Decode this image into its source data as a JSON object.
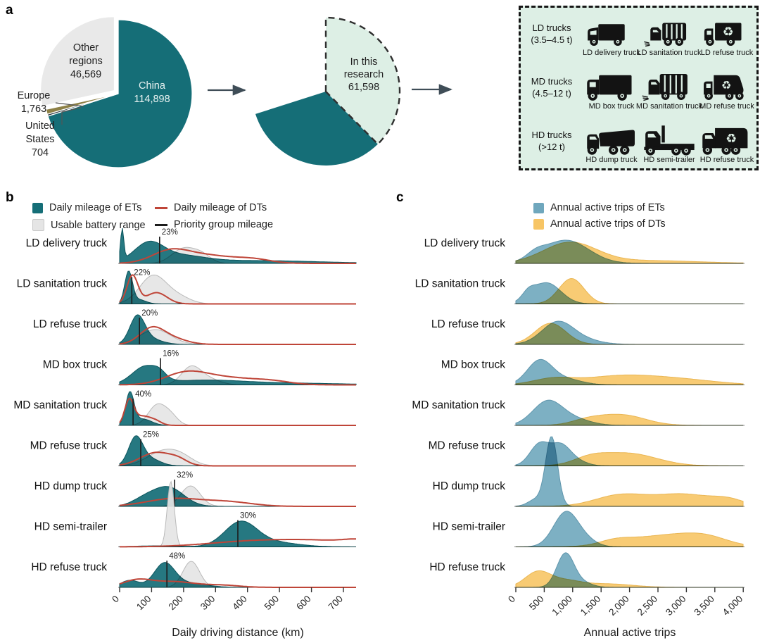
{
  "panels": {
    "a": "a",
    "b": "b",
    "c": "c"
  },
  "colors": {
    "teal": "#156e77",
    "tealDark": "#0d565e",
    "mint": "#ddefe5",
    "gray": "#e5e5e5",
    "grayStroke": "#b9b9b9",
    "red": "#bf4538",
    "blue": "#6fa7bd",
    "blueStroke": "#6096ad",
    "yellow": "#f7c565",
    "yellowStroke": "#eab653",
    "arrow": "#3f4d57",
    "priority_line": "#1c1c1c",
    "europe": "#8d8046",
    "united_states": "#253238",
    "other": "#e9e9e9"
  },
  "panel_a": {
    "truck_box": {
      "rows": [
        {
          "label": "LD trucks",
          "sublabel": "(3.5–4.5 t)",
          "trucks": [
            "LD delivery truck",
            "LD sanitation truck",
            "LD refuse truck"
          ]
        },
        {
          "label": "MD trucks",
          "sublabel": "(4.5–12 t)",
          "trucks": [
            "MD box truck",
            "MD sanitation truck",
            "MD refuse truck"
          ]
        },
        {
          "label": "HD trucks",
          "sublabel": "(>12 t)",
          "trucks": [
            "HD dump truck",
            "HD semi-trailer",
            "HD refuse truck"
          ]
        }
      ]
    }
  },
  "legend_b": {
    "items": [
      {
        "label": "Daily mileage of ETs"
      },
      {
        "label": "Usable battery range"
      },
      {
        "label": "Daily mileage of DTs"
      },
      {
        "label": "Priority group mileage"
      }
    ]
  },
  "legend_c": {
    "items": [
      {
        "label": "Annual active trips of ETs"
      },
      {
        "label": "Annual active trips of DTs"
      }
    ]
  },
  "chart_data": {
    "pie_world": {
      "type": "pie",
      "slices": [
        {
          "name": "China",
          "value": 114898,
          "color": "#156e77",
          "explode": false,
          "label_lines": [
            "China",
            "114,898"
          ]
        },
        {
          "name": "United States",
          "value": 704,
          "color": "#253238",
          "explode": false,
          "label_lines": [
            "United",
            "States",
            "704"
          ]
        },
        {
          "name": "Europe",
          "value": 1763,
          "color": "#8d8046",
          "explode": false,
          "label_lines": [
            "Europe",
            "1,763"
          ]
        },
        {
          "name": "Other regions",
          "value": 46569,
          "color": "#e9e9e9",
          "explode": true,
          "label_lines": [
            "Other",
            "regions",
            "46,569"
          ]
        }
      ]
    },
    "pie_research": {
      "type": "pie",
      "value": 61598,
      "label_lines": [
        "In this",
        "research",
        "61,598"
      ]
    },
    "daily": {
      "type": "ridgeline-density",
      "xlabel": "Daily driving distance (km)",
      "xlim": [
        0,
        740
      ],
      "xticks": [
        "0",
        "100",
        "200",
        "300",
        "400",
        "500",
        "600",
        "700"
      ],
      "rows": [
        {
          "name": "LD delivery truck",
          "pct": "23%",
          "priority_km": 125,
          "et": [
            {
              "mu": 8,
              "s": 5,
              "a": 44
            },
            {
              "mu": 90,
              "s": 45,
              "a": 25
            },
            {
              "mu": 180,
              "s": 80,
              "a": 10
            },
            {
              "mu": 420,
              "s": 200,
              "a": 4
            }
          ],
          "battery": [
            {
              "mu": 200,
              "s": 36,
              "a": 21
            },
            {
              "mu": 258,
              "s": 28,
              "a": 11
            }
          ],
          "dt": [
            {
              "mu": 155,
              "s": 55,
              "a": 14
            },
            {
              "mu": 260,
              "s": 90,
              "a": 12
            },
            {
              "mu": 420,
              "s": 55,
              "a": 5
            }
          ]
        },
        {
          "name": "LD sanitation truck",
          "pct": "22%",
          "priority_km": 38,
          "et": [
            {
              "mu": 28,
              "s": 12,
              "a": 45
            },
            {
              "mu": 60,
              "s": 22,
              "a": 6
            }
          ],
          "battery": [
            {
              "mu": 105,
              "s": 42,
              "a": 40
            },
            {
              "mu": 185,
              "s": 38,
              "a": 9
            }
          ],
          "dt": [
            {
              "mu": 40,
              "s": 17,
              "a": 40
            },
            {
              "mu": 115,
              "s": 33,
              "a": 16
            }
          ]
        },
        {
          "name": "LD refuse truck",
          "pct": "20%",
          "priority_km": 62,
          "et": [
            {
              "mu": 55,
              "s": 23,
              "a": 37
            },
            {
              "mu": 92,
              "s": 38,
              "a": 8
            }
          ],
          "battery": [
            {
              "mu": 112,
              "s": 48,
              "a": 21
            }
          ],
          "dt": [
            {
              "mu": 100,
              "s": 38,
              "a": 22
            },
            {
              "mu": 165,
              "s": 45,
              "a": 8
            }
          ]
        },
        {
          "name": "MD box truck",
          "pct": "16%",
          "priority_km": 128,
          "et": [
            {
              "mu": 82,
              "s": 42,
              "a": 25
            },
            {
              "mu": 125,
              "s": 18,
              "a": 6
            },
            {
              "mu": 260,
              "s": 120,
              "a": 6
            },
            {
              "mu": 520,
              "s": 180,
              "a": 2.5
            }
          ],
          "battery": [
            {
              "mu": 222,
              "s": 30,
              "a": 23
            },
            {
              "mu": 272,
              "s": 38,
              "a": 9
            }
          ],
          "dt": [
            {
              "mu": 205,
              "s": 65,
              "a": 15
            },
            {
              "mu": 330,
              "s": 95,
              "a": 10
            },
            {
              "mu": 480,
              "s": 60,
              "a": 4
            }
          ]
        },
        {
          "name": "MD sanitation truck",
          "pct": "40%",
          "priority_km": 42,
          "et": [
            {
              "mu": 32,
              "s": 13,
              "a": 45
            },
            {
              "mu": 72,
              "s": 28,
              "a": 9
            }
          ],
          "battery": [
            {
              "mu": 118,
              "s": 28,
              "a": 29
            },
            {
              "mu": 162,
              "s": 22,
              "a": 11
            }
          ],
          "dt": [
            {
              "mu": 30,
              "s": 14,
              "a": 34
            },
            {
              "mu": 72,
              "s": 28,
              "a": 13
            },
            {
              "mu": 115,
              "s": 18,
              "a": 4
            }
          ]
        },
        {
          "name": "MD refuse truck",
          "pct": "25%",
          "priority_km": 66,
          "et": [
            {
              "mu": 50,
              "s": 22,
              "a": 39
            },
            {
              "mu": 95,
              "s": 32,
              "a": 10
            }
          ],
          "battery": [
            {
              "mu": 138,
              "s": 50,
              "a": 21
            },
            {
              "mu": 198,
              "s": 36,
              "a": 8
            }
          ],
          "dt": [
            {
              "mu": 115,
              "s": 50,
              "a": 19
            },
            {
              "mu": 185,
              "s": 28,
              "a": 6
            }
          ]
        },
        {
          "name": "HD dump truck",
          "pct": "32%",
          "priority_km": 172,
          "et": [
            {
              "mu": 152,
              "s": 48,
              "a": 27
            },
            {
              "mu": 75,
              "s": 38,
              "a": 9
            }
          ],
          "battery": [
            {
              "mu": 222,
              "s": 30,
              "a": 29
            }
          ],
          "dt": [
            {
              "mu": 170,
              "s": 85,
              "a": 11
            },
            {
              "mu": 340,
              "s": 75,
              "a": 6
            }
          ]
        },
        {
          "name": "HD semi-trailer",
          "pct": "30%",
          "priority_km": 370,
          "et": [
            {
              "mu": 378,
              "s": 50,
              "a": 33
            },
            {
              "mu": 470,
              "s": 80,
              "a": 7
            },
            {
              "mu": 120,
              "s": 70,
              "a": 1.5
            }
          ],
          "battery": [
            {
              "mu": 160,
              "s": 11,
              "a": 93
            }
          ],
          "dt": [
            {
              "mu": 420,
              "s": 140,
              "a": 8
            },
            {
              "mu": 640,
              "s": 120,
              "a": 7
            },
            {
              "mu": 755,
              "s": 50,
              "a": 6
            }
          ]
        },
        {
          "name": "HD refuse truck",
          "pct": "48%",
          "priority_km": 148,
          "et": [
            {
              "mu": 140,
              "s": 32,
              "a": 33
            },
            {
              "mu": 32,
              "s": 28,
              "a": 10
            },
            {
              "mu": 215,
              "s": 55,
              "a": 6
            }
          ],
          "battery": [
            {
              "mu": 224,
              "s": 26,
              "a": 37
            }
          ],
          "dt": [
            {
              "mu": 55,
              "s": 45,
              "a": 10
            },
            {
              "mu": 170,
              "s": 65,
              "a": 8
            },
            {
              "mu": 320,
              "s": 55,
              "a": 3
            }
          ]
        }
      ]
    },
    "annual": {
      "type": "ridgeline-density",
      "xlabel": "Annual active trips",
      "xlim": [
        0,
        4000
      ],
      "xticks": [
        "0",
        "500",
        "1,000",
        "1,500",
        "2,000",
        "2,500",
        "3,000",
        "3,500",
        "4,000"
      ],
      "rows": [
        {
          "name": "LD delivery truck",
          "et": [
            {
              "mu": 880,
              "s": 400,
              "a": 33
            },
            {
              "mu": 350,
              "s": 160,
              "a": 8
            }
          ],
          "dt": [
            {
              "mu": 950,
              "s": 470,
              "a": 29
            },
            {
              "mu": 2300,
              "s": 900,
              "a": 4
            }
          ]
        },
        {
          "name": "LD sanitation truck",
          "et": [
            {
              "mu": 540,
              "s": 250,
              "a": 30
            },
            {
              "mu": 220,
              "s": 110,
              "a": 10
            }
          ],
          "dt": [
            {
              "mu": 980,
              "s": 220,
              "a": 36
            }
          ]
        },
        {
          "name": "LD refuse truck",
          "et": [
            {
              "mu": 740,
              "s": 280,
              "a": 32
            },
            {
              "mu": 1250,
              "s": 280,
              "a": 5
            }
          ],
          "dt": [
            {
              "mu": 610,
              "s": 270,
              "a": 30
            }
          ]
        },
        {
          "name": "MD box truck",
          "et": [
            {
              "mu": 420,
              "s": 220,
              "a": 34
            },
            {
              "mu": 880,
              "s": 280,
              "a": 8
            }
          ],
          "dt": [
            {
              "mu": 650,
              "s": 350,
              "a": 8
            },
            {
              "mu": 1800,
              "s": 650,
              "a": 12
            },
            {
              "mu": 2900,
              "s": 650,
              "a": 7
            }
          ]
        },
        {
          "name": "MD sanitation truck",
          "et": [
            {
              "mu": 560,
              "s": 260,
              "a": 34
            },
            {
              "mu": 1050,
              "s": 280,
              "a": 8
            }
          ],
          "dt": [
            {
              "mu": 1850,
              "s": 420,
              "a": 15
            },
            {
              "mu": 1250,
              "s": 280,
              "a": 6
            }
          ]
        },
        {
          "name": "MD refuse truck",
          "et": [
            {
              "mu": 420,
              "s": 170,
              "a": 31
            },
            {
              "mu": 790,
              "s": 170,
              "a": 28
            },
            {
              "mu": 1080,
              "s": 180,
              "a": 6
            }
          ],
          "dt": [
            {
              "mu": 1950,
              "s": 520,
              "a": 18
            },
            {
              "mu": 1300,
              "s": 280,
              "a": 8
            }
          ]
        },
        {
          "name": "HD dump truck",
          "et": [
            {
              "mu": 630,
              "s": 105,
              "a": 98
            },
            {
              "mu": 360,
              "s": 140,
              "a": 10
            }
          ],
          "dt": [
            {
              "mu": 1850,
              "s": 450,
              "a": 16
            },
            {
              "mu": 2950,
              "s": 500,
              "a": 17
            },
            {
              "mu": 3750,
              "s": 280,
              "a": 8
            }
          ]
        },
        {
          "name": "HD semi-trailer",
          "et": [
            {
              "mu": 890,
              "s": 220,
              "a": 50
            },
            {
              "mu": 1280,
              "s": 180,
              "a": 6
            }
          ],
          "dt": [
            {
              "mu": 2650,
              "s": 650,
              "a": 16
            },
            {
              "mu": 3350,
              "s": 380,
              "a": 9
            },
            {
              "mu": 1750,
              "s": 280,
              "a": 6
            }
          ]
        },
        {
          "name": "HD refuse truck",
          "et": [
            {
              "mu": 870,
              "s": 150,
              "a": 47
            },
            {
              "mu": 1150,
              "s": 180,
              "a": 7
            }
          ],
          "dt": [
            {
              "mu": 380,
              "s": 220,
              "a": 21
            },
            {
              "mu": 850,
              "s": 280,
              "a": 9
            },
            {
              "mu": 1600,
              "s": 450,
              "a": 5
            }
          ]
        }
      ]
    }
  }
}
